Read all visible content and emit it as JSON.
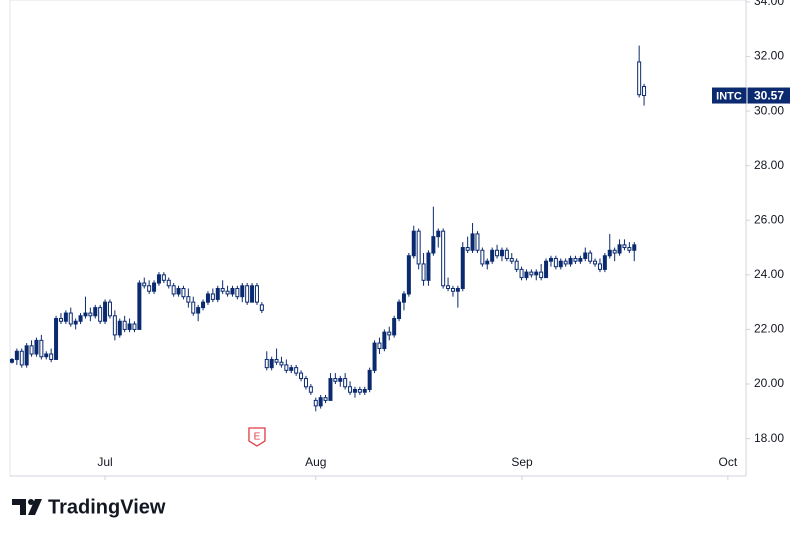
{
  "chart_data": {
    "type": "candlestick",
    "color": "#0b2a6f",
    "open": [
      20.8,
      20.9,
      21.2,
      20.7,
      21.4,
      21.1,
      21.6,
      21.0,
      21.1,
      20.9,
      22.4,
      22.3,
      22.6,
      22.2,
      22.3,
      22.5,
      22.6,
      22.5,
      22.8,
      22.3,
      23.0,
      22.5,
      21.8,
      22.3,
      22.0,
      22.2,
      22.0,
      23.7,
      23.6,
      23.4,
      23.7,
      24.0,
      23.8,
      23.6,
      23.3,
      23.5,
      23.2,
      23.0,
      22.6,
      22.8,
      23.0,
      23.3,
      23.1,
      23.5,
      23.4,
      23.3,
      23.5,
      23.2,
      23.6,
      23.0,
      23.6,
      22.9,
      20.9,
      20.6,
      20.9,
      20.8,
      20.7,
      20.5,
      20.6,
      20.4,
      20.2,
      19.9,
      19.4,
      19.2,
      19.5,
      19.4,
      20.2,
      20.1,
      20.2,
      19.9,
      19.7,
      19.8,
      19.7,
      19.8,
      20.5,
      21.5,
      21.3,
      21.9,
      21.8,
      22.4,
      23.0,
      23.3,
      24.7,
      25.6,
      24.4,
      23.8,
      24.8,
      25.4,
      25.6,
      23.6,
      23.5,
      23.4,
      23.5,
      25.0,
      24.9,
      25.5,
      24.9,
      24.4,
      24.5,
      24.9,
      24.7,
      24.9,
      24.6,
      24.5,
      24.2,
      23.9,
      24.1,
      24.0,
      24.1,
      23.9,
      24.5,
      24.6,
      24.3,
      24.5,
      24.4,
      24.6,
      24.5,
      24.6,
      24.8,
      24.5,
      24.4,
      24.2,
      24.7,
      24.9,
      24.8,
      25.1,
      25.0,
      24.9,
      31.8,
      30.9
    ],
    "high": [
      20.95,
      21.3,
      21.3,
      21.5,
      21.6,
      21.7,
      21.8,
      21.2,
      21.3,
      22.5,
      22.6,
      22.7,
      22.8,
      22.4,
      22.6,
      23.2,
      22.8,
      22.9,
      22.9,
      23.1,
      23.1,
      22.7,
      22.4,
      22.5,
      22.4,
      22.3,
      23.8,
      23.9,
      23.8,
      23.8,
      24.1,
      24.1,
      23.9,
      23.7,
      23.6,
      23.6,
      23.5,
      23.2,
      22.9,
      23.1,
      23.4,
      23.5,
      23.6,
      23.8,
      23.6,
      23.6,
      23.6,
      23.7,
      23.7,
      23.7,
      23.7,
      23.0,
      21.2,
      21.0,
      21.3,
      21.0,
      20.9,
      20.7,
      20.7,
      20.5,
      20.3,
      20.0,
      19.5,
      19.6,
      19.6,
      20.4,
      20.4,
      20.3,
      20.4,
      20.1,
      19.9,
      19.9,
      19.9,
      20.6,
      21.6,
      21.7,
      22.0,
      22.1,
      22.5,
      23.1,
      23.4,
      24.8,
      25.8,
      25.7,
      24.8,
      24.9,
      26.5,
      25.7,
      25.7,
      23.9,
      23.6,
      23.6,
      25.2,
      25.4,
      25.9,
      25.6,
      25.0,
      24.6,
      25.0,
      25.1,
      25.0,
      25.0,
      24.8,
      24.6,
      24.3,
      24.2,
      24.2,
      24.2,
      24.4,
      24.6,
      24.7,
      24.7,
      24.6,
      24.6,
      24.7,
      24.7,
      24.7,
      25.0,
      24.9,
      24.6,
      24.6,
      24.8,
      25.5,
      25.0,
      25.3,
      25.3,
      25.2,
      25.2,
      32.4,
      31.0
    ],
    "low": [
      20.75,
      20.7,
      20.6,
      20.6,
      21.0,
      21.0,
      20.9,
      20.9,
      20.8,
      20.9,
      22.2,
      22.2,
      22.1,
      22.0,
      22.2,
      22.4,
      22.3,
      22.4,
      22.2,
      22.2,
      22.4,
      21.6,
      21.7,
      21.9,
      21.9,
      21.9,
      22.0,
      23.5,
      23.3,
      23.3,
      23.6,
      23.7,
      23.5,
      23.2,
      23.2,
      23.1,
      22.8,
      22.5,
      22.3,
      22.7,
      22.9,
      23.0,
      23.0,
      23.3,
      23.2,
      23.2,
      23.1,
      23.0,
      22.9,
      23.0,
      22.9,
      22.6,
      20.5,
      20.5,
      20.7,
      20.6,
      20.4,
      20.4,
      20.3,
      20.1,
      19.8,
      19.6,
      19.0,
      19.1,
      19.3,
      19.4,
      20.0,
      19.9,
      19.8,
      19.6,
      19.5,
      19.6,
      19.6,
      19.7,
      20.4,
      21.1,
      21.2,
      21.6,
      21.7,
      22.3,
      22.7,
      23.2,
      24.6,
      24.2,
      23.6,
      23.6,
      24.7,
      25.0,
      23.5,
      23.4,
      23.2,
      22.8,
      23.4,
      24.8,
      24.8,
      24.8,
      24.3,
      24.2,
      24.4,
      24.6,
      24.5,
      24.5,
      24.4,
      24.1,
      23.8,
      23.8,
      23.9,
      23.8,
      23.8,
      23.9,
      24.3,
      24.2,
      24.2,
      24.3,
      24.3,
      24.4,
      24.4,
      24.5,
      24.4,
      24.3,
      24.1,
      24.1,
      24.6,
      24.5,
      24.7,
      24.9,
      24.8,
      24.5,
      30.5,
      30.2
    ],
    "close": [
      20.9,
      21.2,
      20.7,
      21.4,
      21.1,
      21.6,
      21.0,
      21.1,
      20.9,
      22.4,
      22.3,
      22.6,
      22.2,
      22.3,
      22.5,
      22.6,
      22.5,
      22.8,
      22.3,
      23.0,
      22.5,
      21.8,
      22.3,
      22.0,
      22.2,
      22.0,
      23.7,
      23.6,
      23.4,
      23.7,
      24.0,
      23.8,
      23.6,
      23.3,
      23.5,
      23.2,
      23.0,
      22.6,
      22.8,
      23.0,
      23.3,
      23.1,
      23.5,
      23.4,
      23.3,
      23.5,
      23.2,
      23.6,
      23.0,
      23.6,
      23.0,
      22.7,
      20.6,
      20.9,
      20.8,
      20.7,
      20.5,
      20.6,
      20.4,
      20.2,
      19.9,
      19.7,
      19.2,
      19.5,
      19.4,
      20.2,
      20.1,
      20.2,
      19.9,
      19.7,
      19.8,
      19.7,
      19.8,
      20.5,
      21.5,
      21.3,
      21.9,
      21.8,
      22.4,
      23.0,
      23.3,
      24.7,
      25.6,
      24.4,
      23.8,
      24.8,
      25.4,
      25.6,
      23.6,
      23.5,
      23.4,
      23.5,
      25.0,
      24.9,
      25.5,
      24.9,
      24.4,
      24.5,
      24.9,
      24.7,
      24.9,
      24.6,
      24.5,
      24.2,
      23.9,
      24.1,
      24.0,
      24.1,
      23.9,
      24.5,
      24.6,
      24.3,
      24.5,
      24.4,
      24.6,
      24.5,
      24.6,
      24.8,
      24.5,
      24.4,
      24.2,
      24.7,
      24.9,
      24.8,
      25.1,
      25.0,
      24.9,
      25.1,
      30.6,
      30.57
    ],
    "xlim": [
      -0.4,
      149.6
    ],
    "xticks": [
      {
        "value": 19,
        "label": "Jul"
      },
      {
        "value": 62,
        "label": "Aug"
      },
      {
        "value": 104.1,
        "label": "Sep"
      },
      {
        "value": 146.1,
        "label": "Oct"
      }
    ],
    "ylim": [
      16.63,
      34.07
    ],
    "yticks": [
      {
        "value": 18,
        "label": "18.00"
      },
      {
        "value": 20,
        "label": "20.00"
      },
      {
        "value": 22,
        "label": "22.00"
      },
      {
        "value": 24,
        "label": "24.00"
      },
      {
        "value": 26,
        "label": "26.00"
      },
      {
        "value": 28,
        "label": "28.00"
      },
      {
        "value": 30,
        "label": "30.00"
      },
      {
        "value": 32,
        "label": "32.00"
      },
      {
        "value": 34,
        "label": "34.00"
      }
    ],
    "last_price": {
      "symbol": "INTC",
      "value": 30.57,
      "label": "30.57"
    },
    "earnings_marker": {
      "label": "E",
      "x": 50,
      "color": "#e03a45"
    },
    "brand": "TradingView"
  }
}
